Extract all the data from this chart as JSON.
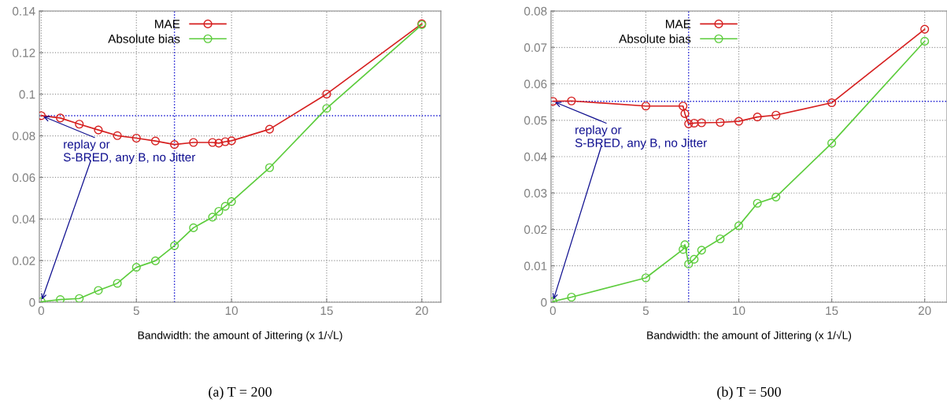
{
  "chart_data": [
    {
      "type": "line",
      "xlabel": "Bandwidth: the amount of Jittering (x 1/√L)",
      "xlim": [
        -0.1,
        21
      ],
      "xticks": [
        0,
        5,
        10,
        15,
        20
      ],
      "ylim": [
        0,
        0.14
      ],
      "yticks": [
        0,
        0.02,
        0.04,
        0.06,
        0.08,
        0.1,
        0.12,
        0.14
      ],
      "grid": true,
      "legend": "top left",
      "marker": "circle",
      "line_style": "solid",
      "series": [
        {
          "name": "MAE",
          "color": "#d62020",
          "x": [
            0,
            1,
            2,
            3,
            4,
            5,
            6,
            7,
            8,
            9,
            9.33,
            9.67,
            10,
            12,
            15,
            20
          ],
          "values": [
            0.0897,
            0.0886,
            0.0856,
            0.0828,
            0.0801,
            0.0789,
            0.0775,
            0.0758,
            0.0768,
            0.0768,
            0.0765,
            0.0772,
            0.0776,
            0.0832,
            0.1001,
            0.1339
          ]
        },
        {
          "name": "Absolute bias",
          "color": "#5ccc3c",
          "x": [
            0,
            1,
            2,
            3,
            4,
            5,
            6,
            7,
            8,
            9,
            9.33,
            9.67,
            10,
            12,
            15,
            20
          ],
          "values": [
            0.0003,
            0.0013,
            0.0018,
            0.0057,
            0.0091,
            0.0168,
            0.0199,
            0.0272,
            0.0358,
            0.0409,
            0.0437,
            0.0461,
            0.0484,
            0.0647,
            0.0932,
            0.1334
          ]
        }
      ],
      "ref_lines": [
        {
          "axis": "y",
          "value": 0.0897,
          "color": "#1010d0",
          "line_style": "dotted"
        },
        {
          "axis": "x",
          "value": 7,
          "color": "#1010d0",
          "line_style": "dotted"
        }
      ],
      "annotations": [
        {
          "text": "replay or\nS-BRED, any B, no Jitter",
          "x": 0,
          "y": 0.0897
        },
        "(a) T = 200"
      ]
    },
    {
      "type": "line",
      "xlabel": "Bandwidth: the amount of Jittering (x 1/√L)",
      "xlim": [
        -0.1,
        21.2
      ],
      "xticks": [
        0,
        5,
        10,
        15,
        20
      ],
      "ylim": [
        0,
        0.08
      ],
      "yticks": [
        0,
        0.01,
        0.02,
        0.03,
        0.04,
        0.05,
        0.06,
        0.07,
        0.08
      ],
      "grid": true,
      "legend": "top left",
      "marker": "circle",
      "line_style": "solid",
      "series": [
        {
          "name": "MAE",
          "color": "#d62020",
          "x": [
            0,
            1,
            5,
            7,
            7.1,
            7.3,
            7.6,
            8,
            9,
            10,
            11,
            12,
            15,
            20
          ],
          "values": [
            0.0552,
            0.0553,
            0.0539,
            0.0539,
            0.0518,
            0.049,
            0.0492,
            0.0493,
            0.0494,
            0.0497,
            0.0509,
            0.0514,
            0.0548,
            0.075
          ]
        },
        {
          "name": "Absolute bias",
          "color": "#5ccc3c",
          "x": [
            0,
            1,
            5,
            7,
            7.1,
            7.3,
            7.6,
            8,
            9,
            10,
            11,
            12,
            15,
            20
          ],
          "values": [
            0.0002,
            0.0014,
            0.0067,
            0.0145,
            0.0158,
            0.0105,
            0.0118,
            0.0143,
            0.0174,
            0.021,
            0.0272,
            0.0289,
            0.0437,
            0.0717
          ]
        }
      ],
      "ref_lines": [
        {
          "axis": "y",
          "value": 0.0552,
          "color": "#1010d0",
          "line_style": "dotted"
        },
        {
          "axis": "x",
          "value": 7.3,
          "color": "#1010d0",
          "line_style": "dotted"
        }
      ],
      "annotations": [
        {
          "text": "replay or\nS-BRED, any B, no Jitter",
          "x": 0,
          "y": 0.0552
        },
        "(b) T = 500"
      ]
    }
  ]
}
